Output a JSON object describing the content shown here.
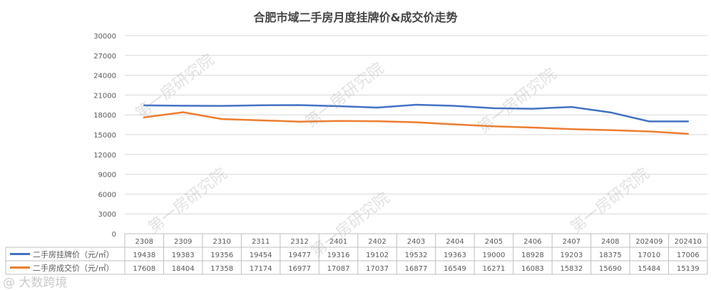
{
  "title": "合肥市域二手房月度挂牌价&成交价走势",
  "watermarks": [
    "第一房研究院",
    "第一房研究院",
    "第一房研究院",
    "第一房研究院",
    "第一房研究院",
    "第一房研究院"
  ],
  "corner_watermark": "@ 大数跨境",
  "chart_data": {
    "type": "line",
    "categories": [
      "2308",
      "2309",
      "2310",
      "2311",
      "2312",
      "2401",
      "2402",
      "2403",
      "2404",
      "2405",
      "2406",
      "2407",
      "2408",
      "202409",
      "202410"
    ],
    "series": [
      {
        "name": "二手房挂牌价（元/㎡）",
        "color": "#4472C4",
        "values": [
          19438,
          19383,
          19356,
          19454,
          19477,
          19316,
          19102,
          19532,
          19363,
          19000,
          18928,
          19203,
          18375,
          17010,
          17006
        ]
      },
      {
        "name": "二手房成交价（元/㎡）",
        "color": "#ED7D31",
        "values": [
          17608,
          18404,
          17358,
          17174,
          16977,
          17087,
          17037,
          16877,
          16549,
          16271,
          16083,
          15832,
          15690,
          15484,
          15139
        ]
      }
    ],
    "yticks": [
      0,
      3000,
      6000,
      9000,
      12000,
      15000,
      18000,
      21000,
      24000,
      27000,
      30000
    ],
    "ylim": [
      0,
      30000
    ],
    "grid": true,
    "legend": "data-table"
  }
}
